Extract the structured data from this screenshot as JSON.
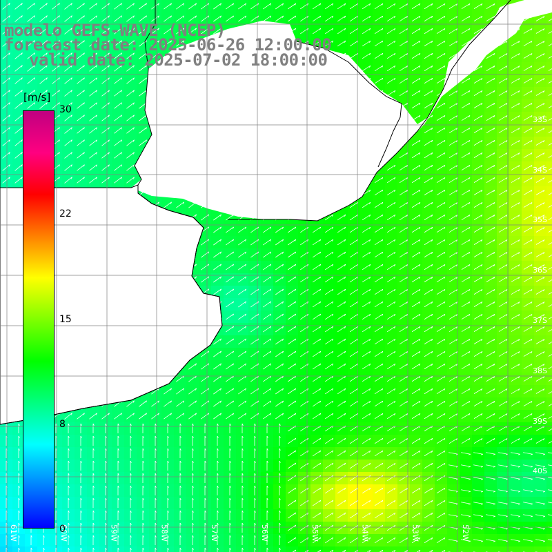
{
  "title": {
    "line1": "modelo GEFS-WAVE (NCEP)",
    "line2": "forecast date: 2025-06-26 12:00:00",
    "line3": "valid date: 2025-07-02 18:00:00"
  },
  "colorbar": {
    "unit": "[m/s]",
    "ticks": [
      "30",
      "22",
      "15",
      "8",
      "0"
    ],
    "stops": [
      "#0000ff",
      "#0080ff",
      "#00ffff",
      "#00ff80",
      "#00ff00",
      "#80ff00",
      "#ffff00",
      "#ff8000",
      "#ff0000",
      "#ff0080",
      "#c00080"
    ]
  },
  "map": {
    "lat_labels": [
      "33S",
      "34S",
      "35S",
      "36S",
      "37S",
      "38S",
      "39S",
      "40S"
    ],
    "lon_labels": [
      "61W",
      "60W",
      "59W",
      "58W",
      "57W",
      "56W",
      "55W",
      "54W",
      "53W",
      "52W"
    ],
    "colors": {
      "land": "#ffffff",
      "coast": "#000000",
      "grid": "#808080",
      "arrow": "#ffffff"
    }
  }
}
